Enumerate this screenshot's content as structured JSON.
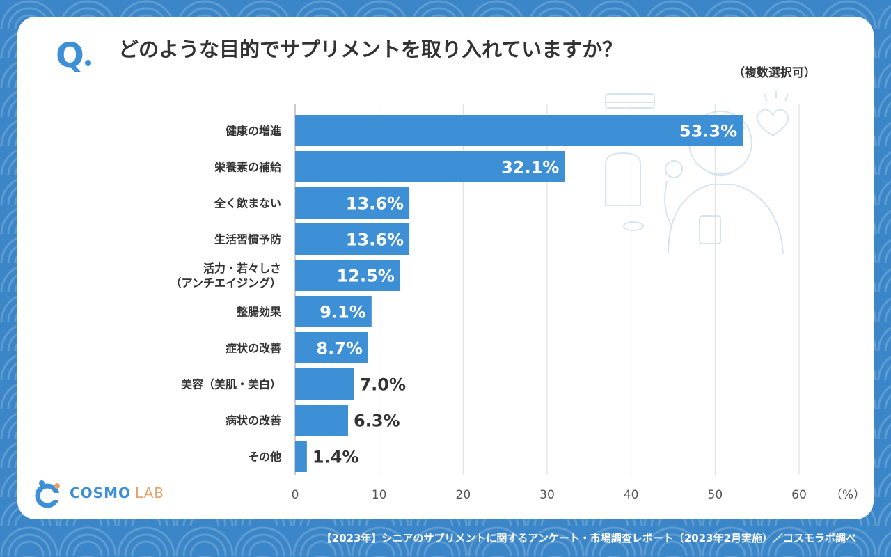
{
  "question_mark": "Q",
  "question": "どのような目的でサプリメントを取り入れていますか？",
  "note": "（複数選択可）",
  "logo": {
    "name": "COSMO",
    "suffix": "LAB"
  },
  "footer": "【2023年】シニアのサプリメントに関するアンケート・市場調査レポート（2023年2月実施）／コスモラボ調べ",
  "colors": {
    "bar": "#3d8fd6",
    "accent": "#e8a06a",
    "background": "#3b86c8"
  },
  "chart_data": {
    "type": "bar",
    "orientation": "horizontal",
    "categories": [
      [
        "健康の増進"
      ],
      [
        "栄養素の補給"
      ],
      [
        "全く飲まない"
      ],
      [
        "生活習慣予防"
      ],
      [
        "活力・若々しさ",
        "（アンチエイジング）"
      ],
      [
        "整腸効果"
      ],
      [
        "症状の改善"
      ],
      [
        "美容（美肌・美白）"
      ],
      [
        "病状の改善"
      ],
      [
        "その他"
      ]
    ],
    "values": [
      53.3,
      32.1,
      13.6,
      13.6,
      12.5,
      9.1,
      8.7,
      7.0,
      6.3,
      1.4
    ],
    "value_labels": [
      "53.3%",
      "32.1%",
      "13.6%",
      "13.6%",
      "12.5%",
      "9.1%",
      "8.7%",
      "7.0%",
      "6.3%",
      "1.4%"
    ],
    "xlim": [
      0,
      60
    ],
    "xticks": [
      "0",
      "10",
      "20",
      "30",
      "40",
      "50",
      "60"
    ],
    "x_unit": "（%）",
    "grid": true
  }
}
